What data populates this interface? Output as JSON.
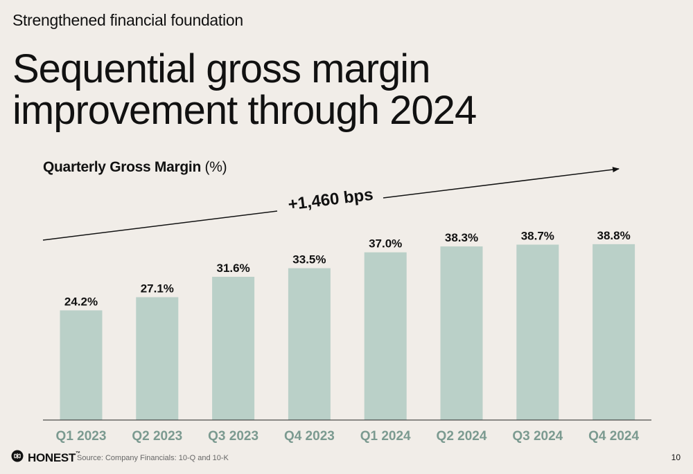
{
  "slide": {
    "eyebrow": "Strengthened financial foundation",
    "headline_line1": "Sequential gross margin",
    "headline_line2": "improvement through 2024",
    "chart_title_bold": "Quarterly Gross Margin",
    "chart_title_unit": "(%)",
    "annotation": "+1,460 bps",
    "brand": "HONEST",
    "brand_tm": "™",
    "source": "Source: Company Financials: 10-Q and 10-K",
    "page_number": "10"
  },
  "colors": {
    "background": "#f1ede8",
    "bar": "#bad0c8",
    "tick_label": "#7b9a90",
    "text": "#111111"
  },
  "chart_data": {
    "type": "bar",
    "title": "Quarterly Gross Margin (%)",
    "categories": [
      "Q1 2023",
      "Q2 2023",
      "Q3 2023",
      "Q4 2023",
      "Q1 2024",
      "Q2 2024",
      "Q3 2024",
      "Q4 2024"
    ],
    "values": [
      24.2,
      27.1,
      31.6,
      33.5,
      37.0,
      38.3,
      38.7,
      38.8
    ],
    "data_labels": [
      "24.2%",
      "27.1%",
      "31.6%",
      "33.5%",
      "37.0%",
      "38.3%",
      "38.7%",
      "38.8%"
    ],
    "ylim": [
      0,
      40
    ],
    "grid": false,
    "annotation": "+1,460 bps"
  }
}
